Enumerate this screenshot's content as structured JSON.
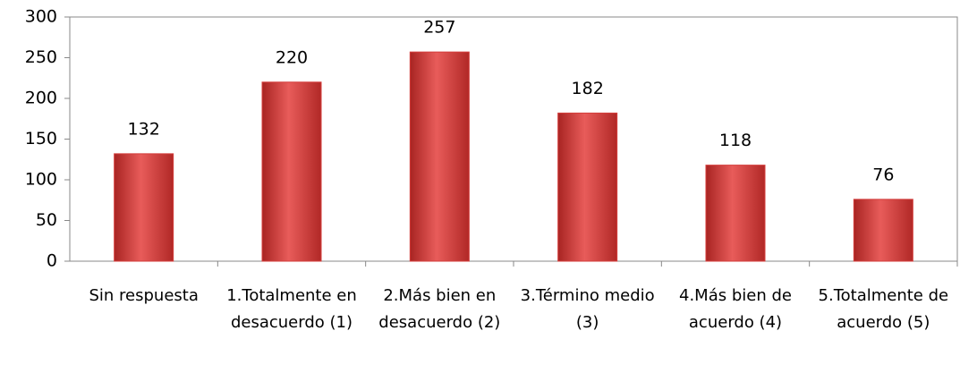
{
  "chart_data": {
    "type": "bar",
    "categories": [
      "Sin respuesta",
      "1.Totalmente en desacuerdo (1)",
      "2.Más bien en desacuerdo (2)",
      "3.Término medio (3)",
      "4.Más bien de acuerdo (4)",
      "5.Totalmente de acuerdo (5)"
    ],
    "values": [
      132,
      220,
      257,
      182,
      118,
      76
    ],
    "color": "#d43d3b",
    "ylim": [
      0,
      300
    ],
    "yticks": [
      0,
      50,
      100,
      150,
      200,
      250,
      300
    ],
    "grid": false
  }
}
